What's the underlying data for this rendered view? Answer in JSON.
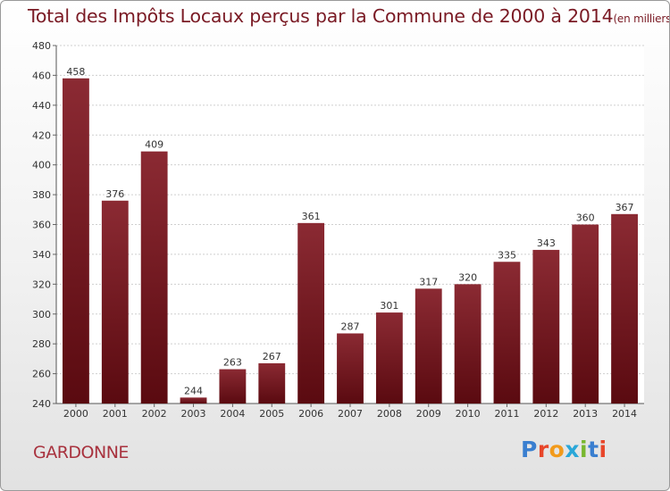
{
  "chart_data": {
    "type": "bar",
    "title": "Total des Impôts Locaux perçus par la Commune de 2000 à 2014",
    "subtitle": "(en milliers d'€)",
    "categories": [
      "2000",
      "2001",
      "2002",
      "2003",
      "2004",
      "2005",
      "2006",
      "2007",
      "2008",
      "2009",
      "2010",
      "2011",
      "2012",
      "2013",
      "2014"
    ],
    "values": [
      458,
      376,
      409,
      244,
      263,
      267,
      361,
      287,
      301,
      317,
      320,
      335,
      343,
      360,
      367
    ],
    "ylim": [
      240,
      480
    ],
    "yticks": [
      240,
      260,
      280,
      300,
      320,
      340,
      360,
      380,
      400,
      420,
      440,
      460,
      480
    ],
    "xlabel": "",
    "ylabel": "",
    "grid": true,
    "bar_color": "#7a1a24"
  },
  "footer": {
    "commune": "GARDONNE",
    "brand": "Proxiti"
  }
}
